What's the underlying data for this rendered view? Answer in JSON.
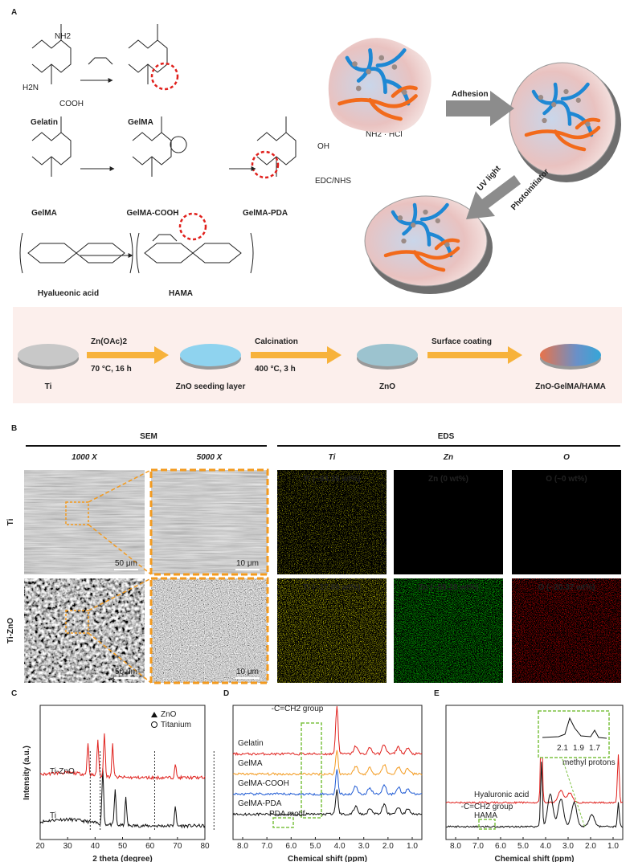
{
  "panel_a": {
    "label": "A",
    "compounds": [
      "Gelatin",
      "GelMA",
      "GelMA",
      "GelMA-COOH",
      "GelMA-PDA",
      "Hyalueonic acid",
      "HAMA"
    ],
    "groups": [
      "NH2",
      "H2N",
      "COOH",
      "NH2 · HCl",
      "OH",
      "EDC/NHS"
    ],
    "schematic": [
      "Adhesion",
      "UV light",
      "Photoinitiator"
    ],
    "process": {
      "steps": [
        "Ti",
        "ZnO seeding layer",
        "ZnO",
        "ZnO-GelMA/HAMA"
      ],
      "conditions": [
        [
          "Zn(OAc)2",
          "70 °C, 16 h"
        ],
        [
          "Calcination",
          "400 °C, 3 h"
        ],
        [
          "Surface coating"
        ]
      ]
    }
  },
  "panel_b": {
    "label": "B",
    "sections": [
      "SEM",
      "EDS"
    ],
    "columns": [
      "1000 X",
      "5000 X",
      "Ti",
      "Zn",
      "O"
    ],
    "rows": [
      "Ti",
      "Ti-ZnO"
    ],
    "eds_labels": [
      [
        "Ti (~94.36 wt%)",
        "Zn (0 wt%)",
        "O (~0 wt%)"
      ],
      [
        "Ti (~17.80 wt%)",
        "Zn (~59.28 wt%)",
        "O (~20.37 wt%)"
      ]
    ],
    "scale_bars": [
      "50 μm",
      "10 μm"
    ]
  },
  "panel_c": {
    "label": "C",
    "x_label": "2 theta (degree)",
    "y_label": "Intensity (a.u.)",
    "xticks": [
      "20",
      "30",
      "40",
      "50",
      "60",
      "70",
      "80"
    ],
    "legend": [
      "ZnO",
      "Titanium"
    ],
    "traces": [
      "Ti-ZnO",
      "Ti"
    ]
  },
  "panel_d": {
    "label": "D",
    "x_label": "Chemical shift (ppm)",
    "xticks": [
      "8.0",
      "7.0",
      "6.0",
      "5.0",
      "4.0",
      "3.0",
      "2.0",
      "1.0"
    ],
    "traces": [
      "Gelatin",
      "GelMA",
      "GelMA-COOH",
      "GelMA-PDA"
    ],
    "annotations": [
      "-C=CH2 group",
      "PDA motif"
    ]
  },
  "panel_e": {
    "label": "E",
    "x_label": "Chemical shift (ppm)",
    "xticks": [
      "8.0",
      "7.0",
      "6.0",
      "5.0",
      "4.0",
      "3.0",
      "2.0",
      "1.0"
    ],
    "traces": [
      "Hyaluronic acid",
      "HAMA"
    ],
    "annotations": [
      "-C=CH2 group",
      "methyl protons"
    ],
    "inset_ticks": [
      "2.1",
      "1.9",
      "1.7"
    ]
  }
}
